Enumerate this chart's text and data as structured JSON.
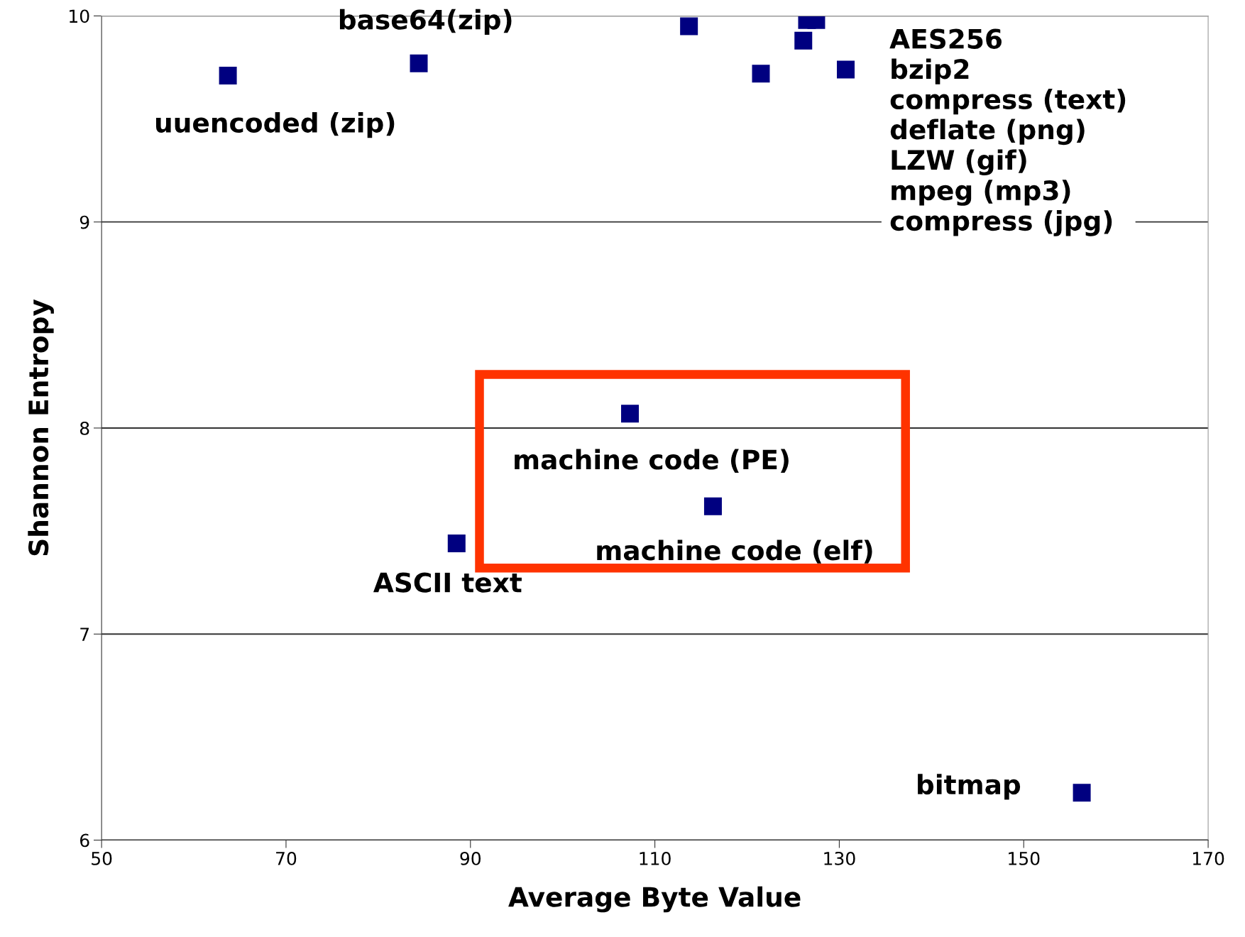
{
  "chart_data": {
    "type": "scatter",
    "xlabel": "Average Byte Value",
    "ylabel": "Shannon Entropy",
    "x": [
      63.7,
      84.4,
      113.7,
      121.5,
      126.1,
      126.5,
      127.5,
      130.7,
      107.3,
      116.3,
      88.5,
      156.3
    ],
    "series": [
      {
        "color": "#000080",
        "values": [
          9.71,
          9.77,
          9.95,
          9.72,
          9.88,
          9.98,
          9.98,
          9.74,
          8.07,
          7.62,
          7.44,
          6.23
        ]
      }
    ],
    "marker": "square",
    "xlim": [
      50,
      170
    ],
    "ylim": [
      6,
      10
    ],
    "xticks": [
      50,
      70,
      90,
      110,
      130,
      150,
      170
    ],
    "yticks": [
      6,
      7,
      8,
      9,
      10
    ],
    "grid": "y",
    "legend": false,
    "annotations": [
      {
        "text": "uuencoded (zip)",
        "x": 63.7,
        "y": 9.71
      },
      {
        "text": "base64(zip)",
        "x": 84.4,
        "y": 9.77
      },
      {
        "text": "machine code (PE)",
        "x": 107.3,
        "y": 8.07
      },
      {
        "text": "machine code (elf)",
        "x": 116.3,
        "y": 7.62
      },
      {
        "text": "ASCII text",
        "x": 88.5,
        "y": 7.44
      },
      {
        "text": "bitmap",
        "x": 156.3,
        "y": 6.23
      },
      "AES256\nbzip2\ncompress (text)\ndeflate (png)\nLZW (gif)\nmpeg (mp3)\ncompress (jpg)"
    ]
  }
}
